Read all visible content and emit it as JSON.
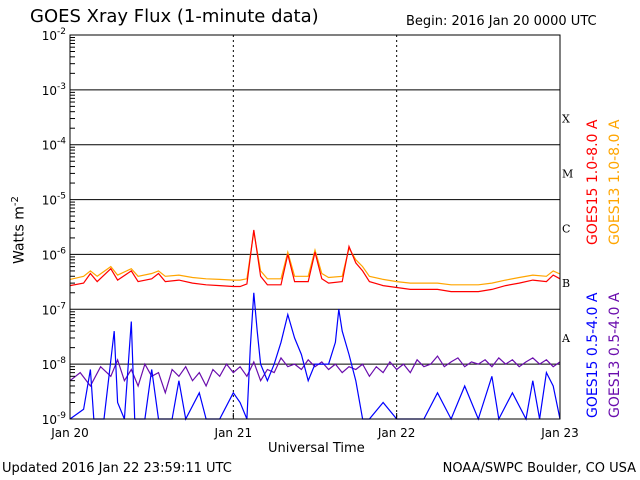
{
  "chart_data": {
    "type": "line",
    "title": "GOES Xray Flux (1-minute data)",
    "begin": "Begin:  2016 Jan 20 0000 UTC",
    "updated": "Updated 2016 Jan 22 23:59:11 UTC",
    "credit": "NOAA/SWPC Boulder, CO USA",
    "xlabel": "Universal Time",
    "ylabel": "Watts m",
    "ylabel_sup": "-2",
    "y_scale": "log",
    "ylim": [
      1e-09,
      0.01
    ],
    "xlim": [
      0,
      72
    ],
    "x_unit": "hours since 2016 Jan 20 00 UTC",
    "grid": true,
    "x_ticks": [
      {
        "label": "Jan 20",
        "x": 0
      },
      {
        "label": "Jan 21",
        "x": 24
      },
      {
        "label": "Jan 22",
        "x": 48
      },
      {
        "label": "Jan 23",
        "x": 72
      }
    ],
    "y_ticks": [
      {
        "exp": "-2",
        "v": 0.01
      },
      {
        "exp": "-3",
        "v": 0.001
      },
      {
        "exp": "-4",
        "v": 0.0001
      },
      {
        "exp": "-5",
        "v": 1e-05
      },
      {
        "exp": "-6",
        "v": 1e-06
      },
      {
        "exp": "-7",
        "v": 1e-07
      },
      {
        "exp": "-8",
        "v": 1e-08
      },
      {
        "exp": "-9",
        "v": 1e-09
      }
    ],
    "flare_classes": [
      {
        "label": "X",
        "v": 0.0003
      },
      {
        "label": "M",
        "v": 3e-05
      },
      {
        "label": "C",
        "v": 3e-06
      },
      {
        "label": "B",
        "v": 3e-07
      },
      {
        "label": "A",
        "v": 3e-08
      }
    ],
    "series": [
      {
        "name": "GOES13 0.5-4.0 A",
        "color": "#6a0dad",
        "points": [
          [
            0,
            5e-09
          ],
          [
            1.5,
            7e-09
          ],
          [
            3,
            4e-09
          ],
          [
            4.5,
            9e-09
          ],
          [
            6,
            6e-09
          ],
          [
            7,
            1.2e-08
          ],
          [
            8,
            5e-09
          ],
          [
            9,
            8e-09
          ],
          [
            10,
            4e-09
          ],
          [
            11,
            1e-08
          ],
          [
            12,
            6e-09
          ],
          [
            13,
            7e-09
          ],
          [
            14,
            3e-09
          ],
          [
            15,
            8e-09
          ],
          [
            16,
            6e-09
          ],
          [
            17,
            9e-09
          ],
          [
            18,
            5e-09
          ],
          [
            19,
            7e-09
          ],
          [
            20,
            4e-09
          ],
          [
            21,
            8e-09
          ],
          [
            22,
            6e-09
          ],
          [
            23,
            1e-08
          ],
          [
            24,
            7e-09
          ],
          [
            25,
            9e-09
          ],
          [
            26,
            6e-09
          ],
          [
            27,
            1.1e-08
          ],
          [
            28,
            5e-09
          ],
          [
            29,
            8e-09
          ],
          [
            30,
            7e-09
          ],
          [
            31,
            1.3e-08
          ],
          [
            32,
            9e-09
          ],
          [
            33,
            1e-08
          ],
          [
            34,
            8e-09
          ],
          [
            35,
            1.2e-08
          ],
          [
            36,
            9e-09
          ],
          [
            37,
            1.1e-08
          ],
          [
            38,
            8e-09
          ],
          [
            39,
            1e-08
          ],
          [
            40,
            7e-09
          ],
          [
            41,
            9e-09
          ],
          [
            42,
            8e-09
          ],
          [
            43,
            1e-08
          ],
          [
            44,
            6e-09
          ],
          [
            45,
            9e-09
          ],
          [
            46,
            7e-09
          ],
          [
            47,
            1.1e-08
          ],
          [
            48,
            8e-09
          ],
          [
            49,
            1e-08
          ],
          [
            50,
            7e-09
          ],
          [
            51,
            1.2e-08
          ],
          [
            52,
            9e-09
          ],
          [
            53,
            1e-08
          ],
          [
            54,
            1.4e-08
          ],
          [
            55,
            9e-09
          ],
          [
            56,
            1.1e-08
          ],
          [
            57,
            1.3e-08
          ],
          [
            58,
            9e-09
          ],
          [
            59,
            1.1e-08
          ],
          [
            60,
            1e-08
          ],
          [
            61,
            1.2e-08
          ],
          [
            62,
            9e-09
          ],
          [
            63,
            1.3e-08
          ],
          [
            64,
            1e-08
          ],
          [
            65,
            1.2e-08
          ],
          [
            66,
            9e-09
          ],
          [
            67,
            1.1e-08
          ],
          [
            68,
            1.3e-08
          ],
          [
            69,
            1e-08
          ],
          [
            70,
            1.2e-08
          ],
          [
            71,
            9e-09
          ],
          [
            72,
            1.1e-08
          ]
        ]
      },
      {
        "name": "GOES15 0.5-4.0 A",
        "color": "#0000ff",
        "points": [
          [
            0,
            1e-09
          ],
          [
            2,
            1.5e-09
          ],
          [
            3,
            8e-09
          ],
          [
            3.5,
            1e-09
          ],
          [
            5,
            1e-09
          ],
          [
            6.5,
            4e-08
          ],
          [
            7,
            2e-09
          ],
          [
            8,
            1e-09
          ],
          [
            9,
            6e-08
          ],
          [
            9.5,
            1e-09
          ],
          [
            11,
            1e-09
          ],
          [
            12,
            8e-09
          ],
          [
            13,
            1e-09
          ],
          [
            15,
            1e-09
          ],
          [
            16,
            5e-09
          ],
          [
            17,
            1e-09
          ],
          [
            19,
            3e-09
          ],
          [
            20,
            1e-09
          ],
          [
            22,
            1e-09
          ],
          [
            24,
            3e-09
          ],
          [
            25,
            2e-09
          ],
          [
            26,
            1e-09
          ],
          [
            26.5,
            2e-08
          ],
          [
            27,
            2e-07
          ],
          [
            27.5,
            4e-08
          ],
          [
            28,
            1e-08
          ],
          [
            29,
            5e-09
          ],
          [
            30,
            1e-08
          ],
          [
            31,
            2.5e-08
          ],
          [
            32,
            8e-08
          ],
          [
            33,
            3e-08
          ],
          [
            34,
            1.5e-08
          ],
          [
            35,
            5e-09
          ],
          [
            36,
            1e-08
          ],
          [
            38,
            1e-08
          ],
          [
            39,
            2.5e-08
          ],
          [
            39.5,
            1e-07
          ],
          [
            40,
            4e-08
          ],
          [
            41,
            1.5e-08
          ],
          [
            42,
            5e-09
          ],
          [
            43,
            1e-09
          ],
          [
            44,
            1e-09
          ],
          [
            46,
            2e-09
          ],
          [
            48,
            1e-09
          ],
          [
            50,
            1e-09
          ],
          [
            52,
            1e-09
          ],
          [
            54,
            3e-09
          ],
          [
            56,
            1e-09
          ],
          [
            58,
            4e-09
          ],
          [
            60,
            1e-09
          ],
          [
            62,
            6e-09
          ],
          [
            63,
            1e-09
          ],
          [
            65,
            3e-09
          ],
          [
            67,
            1e-09
          ],
          [
            68,
            5e-09
          ],
          [
            69,
            1e-09
          ],
          [
            70,
            7e-09
          ],
          [
            71,
            4e-09
          ],
          [
            72,
            1e-09
          ]
        ]
      },
      {
        "name": "GOES13 1.0-8.0 A",
        "color": "#ffa500",
        "points": [
          [
            0,
            3.5e-07
          ],
          [
            2,
            4e-07
          ],
          [
            3,
            5e-07
          ],
          [
            4,
            4e-07
          ],
          [
            6,
            6e-07
          ],
          [
            7,
            4.2e-07
          ],
          [
            9,
            5.5e-07
          ],
          [
            10,
            4e-07
          ],
          [
            12,
            4.5e-07
          ],
          [
            13,
            5e-07
          ],
          [
            14,
            4e-07
          ],
          [
            16,
            4.2e-07
          ],
          [
            18,
            3.8e-07
          ],
          [
            20,
            3.6e-07
          ],
          [
            22,
            3.5e-07
          ],
          [
            24,
            3.4e-07
          ],
          [
            25,
            3.4e-07
          ],
          [
            26,
            3.6e-07
          ],
          [
            27,
            2.6e-06
          ],
          [
            28,
            5e-07
          ],
          [
            29,
            3.6e-07
          ],
          [
            31,
            3.6e-07
          ],
          [
            32,
            1.1e-06
          ],
          [
            33,
            4e-07
          ],
          [
            35,
            4e-07
          ],
          [
            36,
            1.2e-06
          ],
          [
            37,
            4.5e-07
          ],
          [
            38,
            3.8e-07
          ],
          [
            40,
            4e-07
          ],
          [
            41,
            1.3e-06
          ],
          [
            42,
            8e-07
          ],
          [
            43,
            6e-07
          ],
          [
            44,
            4e-07
          ],
          [
            46,
            3.5e-07
          ],
          [
            48,
            3.2e-07
          ],
          [
            50,
            3e-07
          ],
          [
            52,
            3e-07
          ],
          [
            54,
            3e-07
          ],
          [
            56,
            2.8e-07
          ],
          [
            58,
            2.8e-07
          ],
          [
            60,
            2.8e-07
          ],
          [
            62,
            3e-07
          ],
          [
            64,
            3.4e-07
          ],
          [
            66,
            3.8e-07
          ],
          [
            68,
            4.2e-07
          ],
          [
            70,
            4e-07
          ],
          [
            71,
            5e-07
          ],
          [
            72,
            4.4e-07
          ]
        ]
      },
      {
        "name": "GOES15 1.0-8.0 A",
        "color": "#ff0000",
        "points": [
          [
            0,
            2.7e-07
          ],
          [
            2,
            3e-07
          ],
          [
            3,
            4.5e-07
          ],
          [
            4,
            3.2e-07
          ],
          [
            6,
            5.5e-07
          ],
          [
            7,
            3.4e-07
          ],
          [
            9,
            5e-07
          ],
          [
            10,
            3.2e-07
          ],
          [
            12,
            3.6e-07
          ],
          [
            13,
            4.5e-07
          ],
          [
            14,
            3.2e-07
          ],
          [
            16,
            3.4e-07
          ],
          [
            18,
            3e-07
          ],
          [
            20,
            2.8e-07
          ],
          [
            22,
            2.7e-07
          ],
          [
            24,
            2.6e-07
          ],
          [
            25,
            2.6e-07
          ],
          [
            26,
            2.9e-07
          ],
          [
            27,
            2.8e-06
          ],
          [
            28,
            4e-07
          ],
          [
            29,
            2.8e-07
          ],
          [
            31,
            2.8e-07
          ],
          [
            32,
            1e-06
          ],
          [
            33,
            3.2e-07
          ],
          [
            35,
            3.2e-07
          ],
          [
            36,
            1.1e-06
          ],
          [
            37,
            3.6e-07
          ],
          [
            38,
            3e-07
          ],
          [
            40,
            3.2e-07
          ],
          [
            41,
            1.4e-06
          ],
          [
            42,
            7e-07
          ],
          [
            43,
            5e-07
          ],
          [
            44,
            3.2e-07
          ],
          [
            46,
            2.7e-07
          ],
          [
            48,
            2.5e-07
          ],
          [
            50,
            2.3e-07
          ],
          [
            52,
            2.3e-07
          ],
          [
            54,
            2.3e-07
          ],
          [
            56,
            2.1e-07
          ],
          [
            58,
            2.1e-07
          ],
          [
            60,
            2.1e-07
          ],
          [
            62,
            2.3e-07
          ],
          [
            64,
            2.7e-07
          ],
          [
            66,
            3e-07
          ],
          [
            68,
            3.4e-07
          ],
          [
            70,
            3.2e-07
          ],
          [
            71,
            4.2e-07
          ],
          [
            72,
            3.6e-07
          ]
        ]
      }
    ]
  }
}
